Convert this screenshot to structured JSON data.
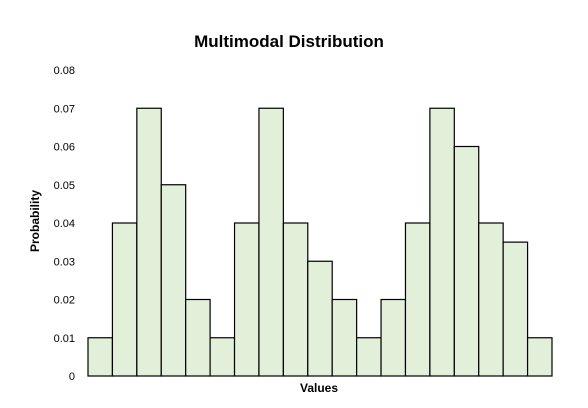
{
  "colors": {
    "bar_fill": "#e2efd9",
    "bar_stroke": "#000000",
    "background": "#ffffff"
  },
  "chart_data": {
    "type": "bar",
    "title": "Multimodal Distribution",
    "xlabel": "Values",
    "ylabel": "Probability",
    "ylim": [
      0,
      0.08
    ],
    "yticks": [
      "0",
      "0.01",
      "0.02",
      "0.03",
      "0.04",
      "0.05",
      "0.06",
      "0.07",
      "0.08"
    ],
    "grid": false,
    "legend": "none",
    "values": [
      0.01,
      0.04,
      0.07,
      0.05,
      0.02,
      0.01,
      0.04,
      0.07,
      0.04,
      0.03,
      0.02,
      0.01,
      0.02,
      0.04,
      0.07,
      0.06,
      0.04,
      0.035,
      0.01
    ]
  }
}
